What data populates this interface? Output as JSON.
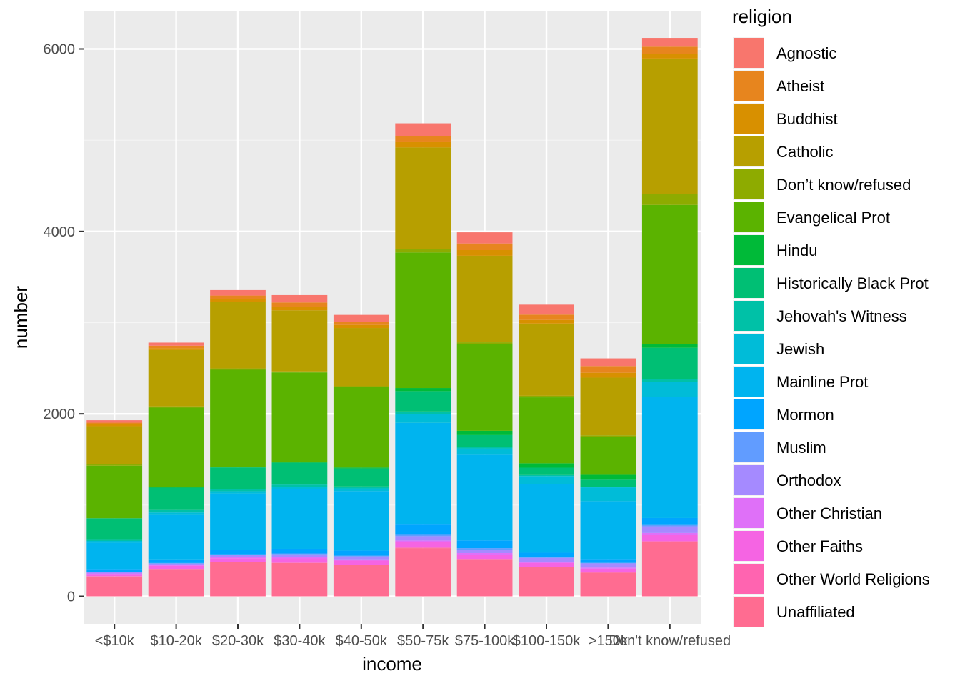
{
  "chart_data": {
    "type": "bar",
    "stacked": true,
    "title": "",
    "xlabel": "income",
    "ylabel": "number",
    "ylim": [
      0,
      6400
    ],
    "yticks": [
      0,
      2000,
      4000,
      6000
    ],
    "grid": true,
    "legend_title": "religion",
    "legend_position": "right",
    "categories": [
      "<$10k",
      "$10-20k",
      "$20-30k",
      "$30-40k",
      "$40-50k",
      "$50-75k",
      "$75-100k",
      "$100-150k",
      ">150k",
      "Don't know/refused"
    ],
    "series": [
      {
        "name": "Agnostic",
        "color": "#F8766D",
        "values": [
          27,
          34,
          60,
          81,
          76,
          137,
          122,
          109,
          84,
          96
        ]
      },
      {
        "name": "Atheist",
        "color": "#E7851E",
        "values": [
          12,
          27,
          37,
          52,
          35,
          70,
          73,
          59,
          74,
          76
        ]
      },
      {
        "name": "Buddhist",
        "color": "#D89000",
        "values": [
          27,
          21,
          30,
          34,
          33,
          58,
          62,
          39,
          53,
          54
        ]
      },
      {
        "name": "Catholic",
        "color": "#B79F00",
        "values": [
          418,
          617,
          732,
          670,
          638,
          1116,
          949,
          792,
          633,
          1489
        ]
      },
      {
        "name": "Don’t know/refused",
        "color": "#8EAB00",
        "values": [
          15,
          14,
          15,
          11,
          10,
          35,
          21,
          17,
          18,
          116
        ]
      },
      {
        "name": "Evangelical Prot",
        "color": "#5BB300",
        "values": [
          575,
          869,
          1064,
          982,
          881,
          1486,
          949,
          723,
          414,
          1529
        ]
      },
      {
        "name": "Hindu",
        "color": "#00BA38",
        "values": [
          1,
          9,
          7,
          9,
          11,
          34,
          47,
          48,
          54,
          37
        ]
      },
      {
        "name": "Historically Black Prot",
        "color": "#00BF74",
        "values": [
          228,
          244,
          236,
          238,
          197,
          223,
          131,
          81,
          78,
          339
        ]
      },
      {
        "name": "Jehovah's Witness",
        "color": "#00C1A7",
        "values": [
          20,
          27,
          24,
          24,
          21,
          30,
          15,
          11,
          6,
          37
        ]
      },
      {
        "name": "Jewish",
        "color": "#00BCD8",
        "values": [
          19,
          19,
          25,
          25,
          30,
          95,
          69,
          87,
          151,
          162
        ]
      },
      {
        "name": "Mainline Prot",
        "color": "#00B4EF",
        "values": [
          289,
          495,
          619,
          655,
          651,
          1107,
          939,
          753,
          634,
          1328
        ]
      },
      {
        "name": "Mormon",
        "color": "#00A5FF",
        "values": [
          29,
          40,
          48,
          51,
          56,
          112,
          85,
          49,
          42,
          69
        ]
      },
      {
        "name": "Muslim",
        "color": "#619CFF",
        "values": [
          6,
          7,
          9,
          10,
          9,
          23,
          16,
          8,
          6,
          22
        ]
      },
      {
        "name": "Orthodox",
        "color": "#A58AFF",
        "values": [
          13,
          17,
          23,
          32,
          32,
          47,
          38,
          42,
          46,
          73
        ]
      },
      {
        "name": "Other Christian",
        "color": "#DF70F8",
        "values": [
          9,
          7,
          11,
          13,
          13,
          14,
          18,
          14,
          12,
          18
        ]
      },
      {
        "name": "Other Faiths",
        "color": "#F564E3",
        "values": [
          20,
          33,
          40,
          46,
          49,
          63,
          46,
          40,
          41,
          71
        ]
      },
      {
        "name": "Other World Religions",
        "color": "#FF64B0",
        "values": [
          5,
          2,
          3,
          4,
          2,
          7,
          3,
          4,
          4,
          8
        ]
      },
      {
        "name": "Unaffiliated",
        "color": "#FF6C91",
        "values": [
          217,
          299,
          374,
          365,
          341,
          528,
          407,
          321,
          258,
          597
        ]
      }
    ]
  },
  "colors": {
    "panel_background": "#EBEBEB",
    "grid_major": "#FFFFFF",
    "grid_minor": "#F5F5F5"
  }
}
